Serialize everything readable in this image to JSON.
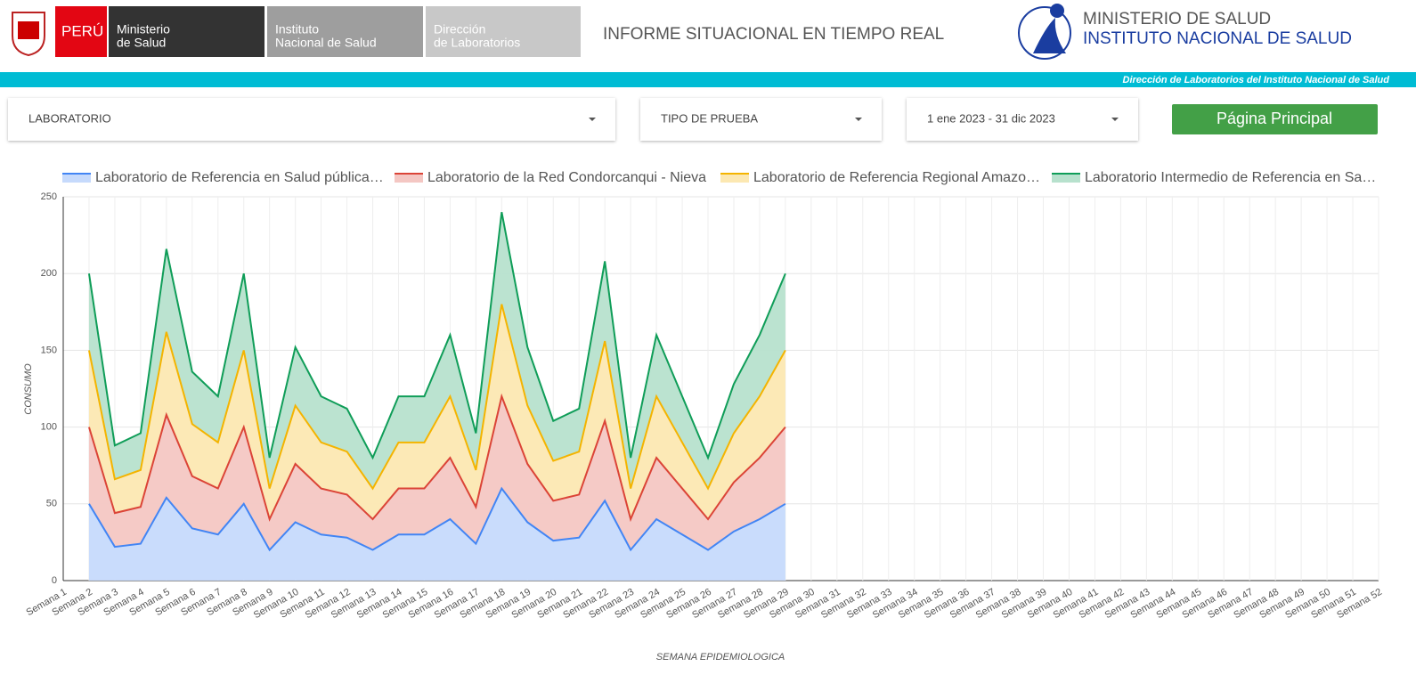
{
  "header": {
    "country": "PERÚ",
    "ministry": [
      "Ministerio",
      "de Salud"
    ],
    "institute": [
      "Instituto",
      "Nacional de Salud"
    ],
    "direction": [
      "Dirección",
      "de Laboratorios"
    ],
    "title": "INFORME SITUACIONAL EN TIEMPO REAL",
    "brand": [
      "MINISTERIO DE SALUD",
      "INSTITUTO NACIONAL DE SALUD"
    ],
    "banner": "Dirección de Laboratorios del Instituto Nacional de Salud"
  },
  "filters": [
    "LABORATORIO",
    "TIPO DE PRUEBA",
    "1 ene 2023 - 31 dic 2023"
  ],
  "button": "Página Principal",
  "chart_data": {
    "type": "stacked-area",
    "x_label": "SEMANA EPIDEMIOLOGICA",
    "y_label": "CONSUMO",
    "categories": [
      "Semana 1",
      "Semana 2",
      "Semana 3",
      "Semana 4",
      "Semana 5",
      "Semana 6",
      "Semana 7",
      "Semana 8",
      "Semana 9",
      "Semana 10",
      "Semana 11",
      "Semana 12",
      "Semana 13",
      "Semana 14",
      "Semana 15",
      "Semana 16",
      "Semana 17",
      "Semana 18",
      "Semana 19",
      "Semana 20",
      "Semana 21",
      "Semana 22",
      "Semana 23",
      "Semana 24",
      "Semana 25",
      "Semana 26",
      "Semana 27",
      "Semana 28",
      "Semana 29",
      "Semana 30",
      "Semana 31",
      "Semana 32",
      "Semana 33",
      "Semana 34",
      "Semana 35",
      "Semana 36",
      "Semana 37",
      "Semana 38",
      "Semana 39",
      "Semana 40",
      "Semana 41",
      "Semana 42",
      "Semana 43",
      "Semana 44",
      "Semana 45",
      "Semana 46",
      "Semana 47",
      "Semana 48",
      "Semana 49",
      "Semana 50",
      "Semana 51",
      "Semana 52"
    ],
    "series": [
      {
        "name": "Laboratorio de Referencia en Salud pública…",
        "color": "#4285f4",
        "fill": "#c6dafc",
        "values": [
          null,
          50,
          22,
          24,
          54,
          34,
          30,
          50,
          20,
          38,
          30,
          28,
          20,
          30,
          30,
          40,
          24,
          60,
          38,
          26,
          28,
          52,
          20,
          40,
          30,
          20,
          32,
          40,
          50,
          null,
          null,
          null,
          null,
          null,
          null,
          null,
          null,
          null,
          null,
          null,
          null,
          null,
          null,
          null,
          null,
          null,
          null,
          null,
          null,
          null,
          null,
          null
        ]
      },
      {
        "name": "Laboratorio de la Red Condorcanqui - Nieva",
        "color": "#db4437",
        "fill": "#f4c7c3",
        "values": [
          null,
          50,
          22,
          24,
          54,
          34,
          30,
          50,
          20,
          38,
          30,
          28,
          20,
          30,
          30,
          40,
          24,
          60,
          38,
          26,
          28,
          52,
          20,
          40,
          30,
          20,
          32,
          40,
          50,
          null,
          null,
          null,
          null,
          null,
          null,
          null,
          null,
          null,
          null,
          null,
          null,
          null,
          null,
          null,
          null,
          null,
          null,
          null,
          null,
          null,
          null,
          null
        ]
      },
      {
        "name": "Laboratorio de Referencia Regional Amazo…",
        "color": "#f4b400",
        "fill": "#fce8b2",
        "values": [
          null,
          50,
          22,
          24,
          54,
          34,
          30,
          50,
          20,
          38,
          30,
          28,
          20,
          30,
          30,
          40,
          24,
          60,
          38,
          26,
          28,
          52,
          20,
          40,
          30,
          20,
          32,
          40,
          50,
          null,
          null,
          null,
          null,
          null,
          null,
          null,
          null,
          null,
          null,
          null,
          null,
          null,
          null,
          null,
          null,
          null,
          null,
          null,
          null,
          null,
          null,
          null
        ]
      },
      {
        "name": "Laboratorio Intermedio de Referencia en Sa…",
        "color": "#0f9d58",
        "fill": "#b7e1cd",
        "values": [
          null,
          50,
          22,
          24,
          54,
          34,
          30,
          50,
          20,
          38,
          30,
          28,
          20,
          30,
          30,
          40,
          24,
          60,
          38,
          26,
          28,
          52,
          20,
          40,
          30,
          20,
          32,
          40,
          50,
          null,
          null,
          null,
          null,
          null,
          null,
          null,
          null,
          null,
          null,
          null,
          null,
          null,
          null,
          null,
          null,
          null,
          null,
          null,
          null,
          null,
          null,
          null
        ]
      }
    ],
    "ylim": [
      0,
      250
    ],
    "yticks": [
      0,
      50,
      100,
      150,
      200,
      250
    ],
    "grid": true
  }
}
